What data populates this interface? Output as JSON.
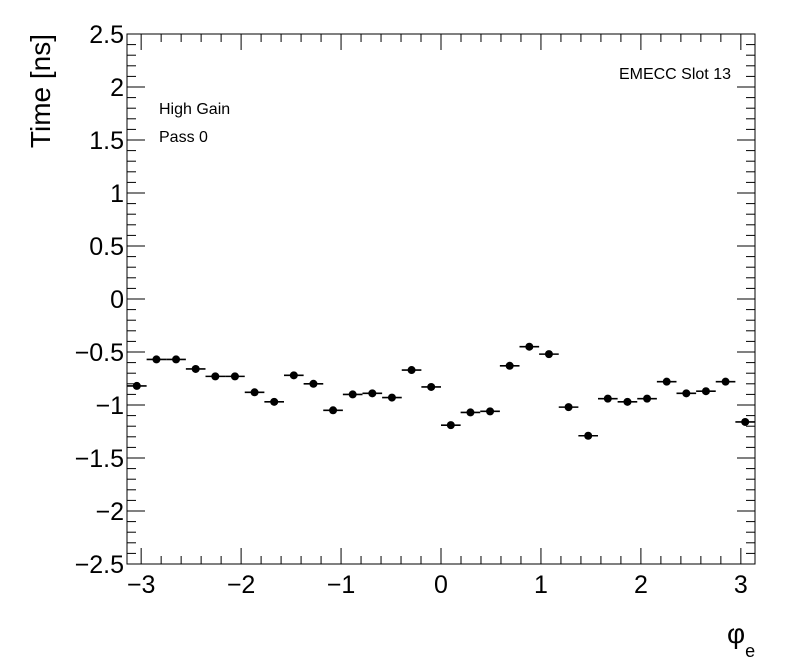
{
  "chart_data": {
    "type": "scatter",
    "xlabel": "φ",
    "xlabel_sub": "e",
    "ylabel": "Time [ns]",
    "xlim": [
      -3.14159,
      3.14159
    ],
    "ylim": [
      -2.5,
      2.5
    ],
    "x_ticks": [
      -3,
      -2,
      -1,
      0,
      1,
      2,
      3
    ],
    "x_tick_labels": [
      "−3",
      "−2",
      "−1",
      "0",
      "1",
      "2",
      "3"
    ],
    "y_ticks": [
      -2.5,
      -2,
      -1.5,
      -1,
      -0.5,
      0,
      0.5,
      1,
      1.5,
      2,
      2.5
    ],
    "y_tick_labels": [
      "−2.5",
      "−2",
      "−1.5",
      "−1",
      "−0.5",
      "0",
      "0.5",
      "1",
      "1.5",
      "2",
      "2.5"
    ],
    "annotations": [
      "High Gain",
      "Pass 0",
      "EMECC Slot 13"
    ],
    "bin_width": 0.19635,
    "x": [
      -3.0434,
      -2.8471,
      -2.6507,
      -2.4544,
      -2.258,
      -2.0617,
      -1.8653,
      -1.669,
      -1.4726,
      -1.2763,
      -1.0799,
      -0.8836,
      -0.6872,
      -0.4909,
      -0.2945,
      -0.0982,
      0.0982,
      0.2945,
      0.4909,
      0.6872,
      0.8836,
      1.0799,
      1.2763,
      1.4726,
      1.669,
      1.8653,
      2.0617,
      2.258,
      2.4544,
      2.6507,
      2.8471,
      3.0434
    ],
    "values": [
      -0.82,
      -0.57,
      -0.57,
      -0.66,
      -0.73,
      -0.73,
      -0.88,
      -0.97,
      -0.72,
      -0.8,
      -1.05,
      -0.9,
      -0.89,
      -0.93,
      -0.67,
      -0.83,
      -1.19,
      -1.07,
      -1.06,
      -0.63,
      -0.45,
      -0.52,
      -1.02,
      -1.29,
      -0.94,
      -0.97,
      -0.94,
      -0.78,
      -0.89,
      -0.87,
      -0.78,
      -1.16
    ]
  }
}
